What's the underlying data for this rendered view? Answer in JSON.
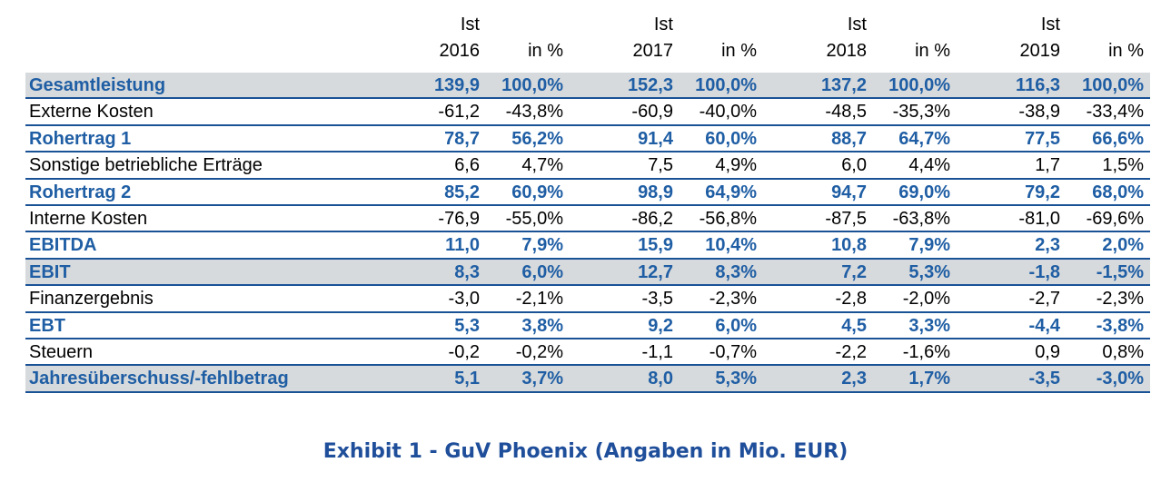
{
  "header": {
    "top": [
      "Ist",
      "Ist",
      "Ist",
      "Ist"
    ],
    "years": [
      "2016",
      "2017",
      "2018",
      "2019"
    ],
    "pct_label": "in %"
  },
  "rows": [
    {
      "label": "Gesamtleistung",
      "bold": true,
      "gray": true,
      "values": [
        "139,9",
        "100,0%",
        "152,3",
        "100,0%",
        "137,2",
        "100,0%",
        "116,3",
        "100,0%"
      ]
    },
    {
      "label": "Externe Kosten",
      "bold": false,
      "gray": false,
      "values": [
        "-61,2",
        "-43,8%",
        "-60,9",
        "-40,0%",
        "-48,5",
        "-35,3%",
        "-38,9",
        "-33,4%"
      ]
    },
    {
      "label": "Rohertrag 1",
      "bold": true,
      "gray": false,
      "values": [
        "78,7",
        "56,2%",
        "91,4",
        "60,0%",
        "88,7",
        "64,7%",
        "77,5",
        "66,6%"
      ]
    },
    {
      "label": "Sonstige betriebliche Erträge",
      "bold": false,
      "gray": false,
      "values": [
        "6,6",
        "4,7%",
        "7,5",
        "4,9%",
        "6,0",
        "4,4%",
        "1,7",
        "1,5%"
      ]
    },
    {
      "label": "Rohertrag 2",
      "bold": true,
      "gray": false,
      "values": [
        "85,2",
        "60,9%",
        "98,9",
        "64,9%",
        "94,7",
        "69,0%",
        "79,2",
        "68,0%"
      ]
    },
    {
      "label": "Interne Kosten",
      "bold": false,
      "gray": false,
      "values": [
        "-76,9",
        "-55,0%",
        "-86,2",
        "-56,8%",
        "-87,5",
        "-63,8%",
        "-81,0",
        "-69,6%"
      ]
    },
    {
      "label": "EBITDA",
      "bold": true,
      "gray": false,
      "values": [
        "11,0",
        "7,9%",
        "15,9",
        "10,4%",
        "10,8",
        "7,9%",
        "2,3",
        "2,0%"
      ]
    },
    {
      "label": "EBIT",
      "bold": true,
      "gray": true,
      "values": [
        "8,3",
        "6,0%",
        "12,7",
        "8,3%",
        "7,2",
        "5,3%",
        "-1,8",
        "-1,5%"
      ]
    },
    {
      "label": "Finanzergebnis",
      "bold": false,
      "gray": false,
      "values": [
        "-3,0",
        "-2,1%",
        "-3,5",
        "-2,3%",
        "-2,8",
        "-2,0%",
        "-2,7",
        "-2,3%"
      ]
    },
    {
      "label": "EBT",
      "bold": true,
      "gray": false,
      "values": [
        "5,3",
        "3,8%",
        "9,2",
        "6,0%",
        "4,5",
        "3,3%",
        "-4,4",
        "-3,8%"
      ]
    },
    {
      "label": "Steuern",
      "bold": false,
      "gray": false,
      "values": [
        "-0,2",
        "-0,2%",
        "-1,1",
        "-0,7%",
        "-2,2",
        "-1,6%",
        "0,9",
        "0,8%"
      ]
    },
    {
      "label": "Jahresüberschuss/-fehlbetrag",
      "bold": true,
      "gray": true,
      "values": [
        "5,1",
        "3,7%",
        "8,0",
        "5,3%",
        "2,3",
        "1,7%",
        "-3,5",
        "-3,0%"
      ]
    }
  ],
  "caption": "Exhibit 1 - GuV Phoenix (Angaben in Mio. EUR)"
}
